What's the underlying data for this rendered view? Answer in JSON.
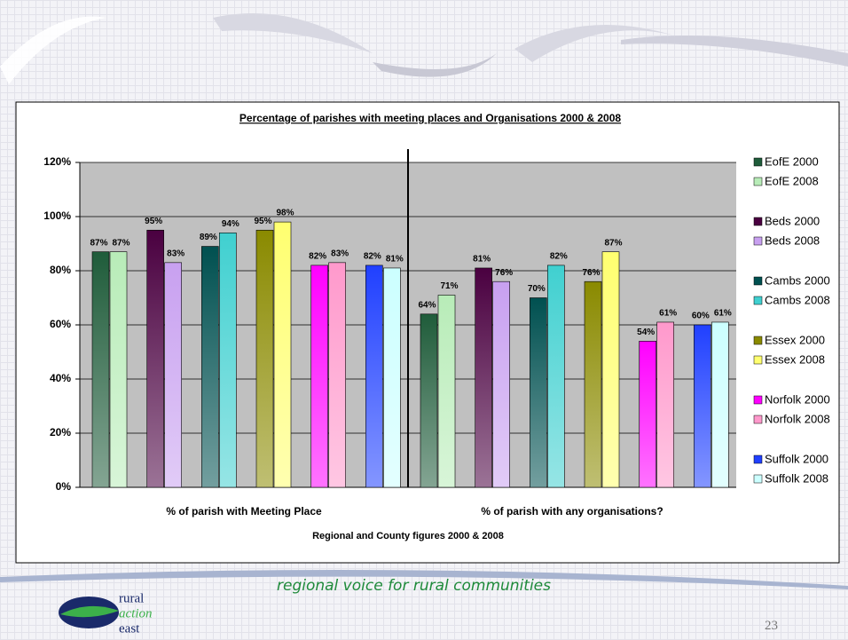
{
  "chart_data": {
    "type": "bar",
    "title": "Percentage of parishes with meeting places and Organisations 2000 & 2008",
    "x_label": "Regional and County figures 2000 & 2008",
    "categories": [
      "% of parish with Meeting Place",
      "% of parish with any organisations?"
    ],
    "ylim": [
      0,
      120
    ],
    "yticks": [
      {
        "value": 0,
        "label": "0%"
      },
      {
        "value": 20,
        "label": "20%"
      },
      {
        "value": 40,
        "label": "40%"
      },
      {
        "value": 60,
        "label": "60%"
      },
      {
        "value": 80,
        "label": "80%"
      },
      {
        "value": 100,
        "label": "100%"
      },
      {
        "value": 120,
        "label": "120%"
      }
    ],
    "grid": true,
    "legend": "right",
    "series": [
      {
        "name": "EofE 2000",
        "color": "#1f5c3a",
        "values": [
          87,
          64
        ],
        "value_labels": [
          "87%",
          "64%"
        ]
      },
      {
        "name": "EofE 2008",
        "color": "#b8ecb8",
        "values": [
          87,
          71
        ],
        "value_labels": [
          "87%",
          "71%"
        ]
      },
      {
        "name": "Beds 2000",
        "color": "#4a0040",
        "values": [
          95,
          81
        ],
        "value_labels": [
          "95%",
          "81%"
        ]
      },
      {
        "name": "Beds 2008",
        "color": "#c8a0f0",
        "values": [
          83,
          76
        ],
        "value_labels": [
          "83%",
          "76%"
        ]
      },
      {
        "name": "Cambs 2000",
        "color": "#005050",
        "values": [
          89,
          70
        ],
        "value_labels": [
          "89%",
          "70%"
        ]
      },
      {
        "name": "Cambs 2008",
        "color": "#40d0d0",
        "values": [
          94,
          82
        ],
        "value_labels": [
          "94%",
          "82%"
        ]
      },
      {
        "name": "Essex 2000",
        "color": "#8a8a00",
        "values": [
          95,
          76
        ],
        "value_labels": [
          "95%",
          "76%"
        ]
      },
      {
        "name": "Essex 2008",
        "color": "#ffff70",
        "values": [
          98,
          87
        ],
        "value_labels": [
          "98%",
          "87%"
        ]
      },
      {
        "name": "Norfolk 2000",
        "color": "#ff00ff",
        "values": [
          82,
          54
        ],
        "value_labels": [
          "82%",
          "54%"
        ]
      },
      {
        "name": "Norfolk 2008",
        "color": "#ff99cc",
        "values": [
          83,
          61
        ],
        "value_labels": [
          "83%",
          "61%"
        ]
      },
      {
        "name": "Suffolk 2000",
        "color": "#2040ff",
        "values": [
          82,
          60
        ],
        "value_labels": [
          "82%",
          "60%"
        ]
      },
      {
        "name": "Suffolk 2008",
        "color": "#ccffff",
        "values": [
          81,
          61
        ],
        "value_labels": [
          "81%",
          "61%"
        ]
      }
    ]
  },
  "footer": {
    "tagline": "regional voice for rural communities",
    "page_number": "23",
    "logo": [
      "rural",
      "action",
      "east"
    ]
  }
}
